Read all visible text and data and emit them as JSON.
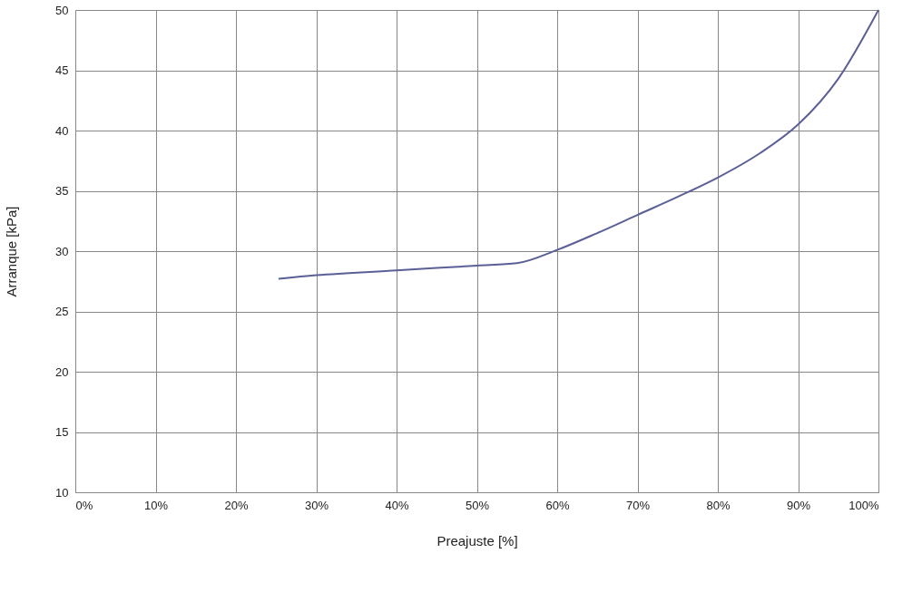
{
  "chart_data": {
    "type": "line",
    "xlabel": "Preajuste [%]",
    "ylabel": "Arranque [kPa]",
    "x": [
      25.3,
      30,
      40,
      50,
      55,
      60,
      65,
      70,
      75,
      80,
      85.2,
      90,
      95,
      100
    ],
    "series": [
      {
        "color": "#5b5f97",
        "values": [
          27.7,
          28.0,
          28.4,
          28.8,
          29.0,
          30.1,
          31.5,
          33.0,
          34.5,
          36.1,
          38.1,
          40.5,
          44.3,
          50
        ]
      }
    ],
    "xlim": [
      0,
      100
    ],
    "xticks": [
      {
        "value": 0,
        "label": "0%"
      },
      {
        "value": 10,
        "label": "10%"
      },
      {
        "value": 20,
        "label": "20%"
      },
      {
        "value": 30,
        "label": "30%"
      },
      {
        "value": 40,
        "label": "40%"
      },
      {
        "value": 50,
        "label": "50%"
      },
      {
        "value": 60,
        "label": "60%"
      },
      {
        "value": 70,
        "label": "70%"
      },
      {
        "value": 80,
        "label": "80%"
      },
      {
        "value": 90,
        "label": "90%"
      },
      {
        "value": 100,
        "label": "100%"
      }
    ],
    "ylim": [
      10,
      50
    ],
    "yticks": [
      10,
      15,
      20,
      25,
      30,
      35,
      40,
      45,
      50
    ],
    "grid": true,
    "marker": "none",
    "line_style": "solid"
  }
}
